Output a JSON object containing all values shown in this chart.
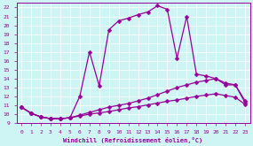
{
  "xlabel": "Windchill (Refroidissement éolien,°C)",
  "bg_color": "#cef4f4",
  "line_color": "#990099",
  "xlim": [
    -0.5,
    23.5
  ],
  "ylim": [
    9,
    22.5
  ],
  "xticks": [
    0,
    1,
    2,
    3,
    4,
    5,
    6,
    7,
    8,
    9,
    10,
    11,
    12,
    13,
    14,
    15,
    16,
    17,
    18,
    19,
    20,
    21,
    22,
    23
  ],
  "yticks": [
    9,
    10,
    11,
    12,
    13,
    14,
    15,
    16,
    17,
    18,
    19,
    20,
    21,
    22
  ],
  "line1_x": [
    0,
    1,
    2,
    3,
    4,
    5,
    6,
    7,
    8,
    9,
    10,
    11,
    12,
    13,
    14,
    15,
    16,
    17,
    18,
    19,
    20,
    21,
    22,
    23
  ],
  "line1_y": [
    10.8,
    10.1,
    9.7,
    9.5,
    9.5,
    9.6,
    9.8,
    10.0,
    10.15,
    10.3,
    10.5,
    10.7,
    10.85,
    11.05,
    11.25,
    11.45,
    11.6,
    11.8,
    12.0,
    12.15,
    12.3,
    12.1,
    11.9,
    11.1
  ],
  "line2_x": [
    0,
    1,
    2,
    3,
    4,
    5,
    6,
    7,
    8,
    9,
    10,
    11,
    12,
    13,
    14,
    15,
    16,
    17,
    18,
    19,
    20,
    21,
    22,
    23
  ],
  "line2_y": [
    10.8,
    10.1,
    9.7,
    9.5,
    9.5,
    9.6,
    9.9,
    10.2,
    10.5,
    10.8,
    11.0,
    11.2,
    11.5,
    11.8,
    12.2,
    12.6,
    13.0,
    13.3,
    13.6,
    13.8,
    14.0,
    13.5,
    13.3,
    11.5
  ],
  "line3_x": [
    0,
    1,
    2,
    3,
    4,
    5,
    6,
    7,
    8,
    9,
    10,
    11,
    12,
    13,
    14,
    15,
    16,
    17,
    18,
    19,
    20,
    21,
    22,
    23
  ],
  "line3_y": [
    10.8,
    10.1,
    9.7,
    9.5,
    9.5,
    9.6,
    12.0,
    17.0,
    13.2,
    19.5,
    20.5,
    20.8,
    21.2,
    21.5,
    22.2,
    21.8,
    16.3,
    21.0,
    14.5,
    14.3,
    14.0,
    13.3,
    13.3,
    11.3
  ],
  "marker": "D",
  "markersize": 2.5,
  "linewidth": 0.9
}
